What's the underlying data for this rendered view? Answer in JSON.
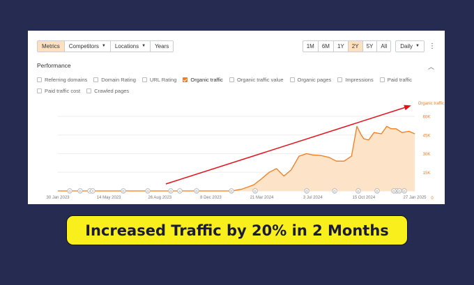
{
  "toolbar": {
    "tabs": [
      {
        "label": "Metrics",
        "active": true
      },
      {
        "label": "Competitors",
        "dropdown": true
      },
      {
        "label": "Locations",
        "dropdown": true
      },
      {
        "label": "Years"
      }
    ],
    "ranges": [
      "1M",
      "6M",
      "1Y",
      "2Y",
      "5Y",
      "All"
    ],
    "active_range": "2Y",
    "interval": "Daily",
    "more_icon": "kebab-menu-icon"
  },
  "performance": {
    "title": "Performance",
    "collapse_icon": "chevron-up-icon",
    "metrics_row1": [
      {
        "label": "Referring domains",
        "checked": false
      },
      {
        "label": "Domain Rating",
        "checked": false
      },
      {
        "label": "URL Rating",
        "checked": false
      },
      {
        "label": "Organic traffic",
        "checked": true
      },
      {
        "label": "Organic traffic value",
        "checked": false
      },
      {
        "label": "Organic pages",
        "checked": false
      },
      {
        "label": "Impressions",
        "checked": false
      },
      {
        "label": "Paid traffic",
        "checked": false
      }
    ],
    "metrics_row2": [
      {
        "label": "Paid traffic cost",
        "checked": false
      },
      {
        "label": "Crawled pages",
        "checked": false
      }
    ]
  },
  "chart_data": {
    "type": "area",
    "series": [
      {
        "name": "Organic traffic",
        "x": [
          "2023-01-30",
          "2023-03-01",
          "2023-05-14",
          "2023-08-01",
          "2023-10-15",
          "2023-12-08",
          "2024-01-20",
          "2024-02-10",
          "2024-03-05",
          "2024-03-21",
          "2024-04-05",
          "2024-04-20",
          "2024-05-05",
          "2024-05-20",
          "2024-06-05",
          "2024-06-20",
          "2024-07-03",
          "2024-07-20",
          "2024-08-05",
          "2024-08-20",
          "2024-09-05",
          "2024-09-20",
          "2024-10-01",
          "2024-10-10",
          "2024-10-15",
          "2024-10-25",
          "2024-11-05",
          "2024-11-20",
          "2024-12-01",
          "2024-12-10",
          "2024-12-20",
          "2025-01-01",
          "2025-01-15",
          "2025-01-27"
        ],
        "values": [
          0,
          0,
          0,
          0,
          0,
          0,
          0,
          1500,
          5000,
          10000,
          15000,
          18000,
          12000,
          17000,
          28000,
          30000,
          29000,
          28500,
          27000,
          24000,
          24000,
          28000,
          52000,
          45000,
          42000,
          41000,
          47000,
          46000,
          52000,
          50000,
          50000,
          47000,
          48000,
          46000
        ]
      }
    ],
    "x_ticks": [
      "30 Jan 2023",
      "14 May 2023",
      "26 Aug 2023",
      "8 Dec 2023",
      "21 Mar 2024",
      "3 Jul 2024",
      "15 Oct 2024",
      "27 Jan 2025"
    ],
    "y_ticks": [
      "15K",
      "30K",
      "45K",
      "60K"
    ],
    "y_zero_label": "0",
    "ylim": [
      0,
      60000
    ],
    "series_label": "Organic traffic",
    "line_color": "#f27c1b",
    "fill_color": "#fde3c8",
    "grid": true,
    "annotation_markers": [
      "G",
      "G",
      "A",
      "Y",
      "G",
      "G",
      "G",
      "A",
      "G",
      "G",
      "G",
      "G",
      "G",
      "G",
      "G",
      "G",
      "G",
      "G",
      "G"
    ],
    "trend_arrow_color": "#e4101b"
  },
  "banner": {
    "text": "Increased Traffic by 20% in 2 Months"
  }
}
